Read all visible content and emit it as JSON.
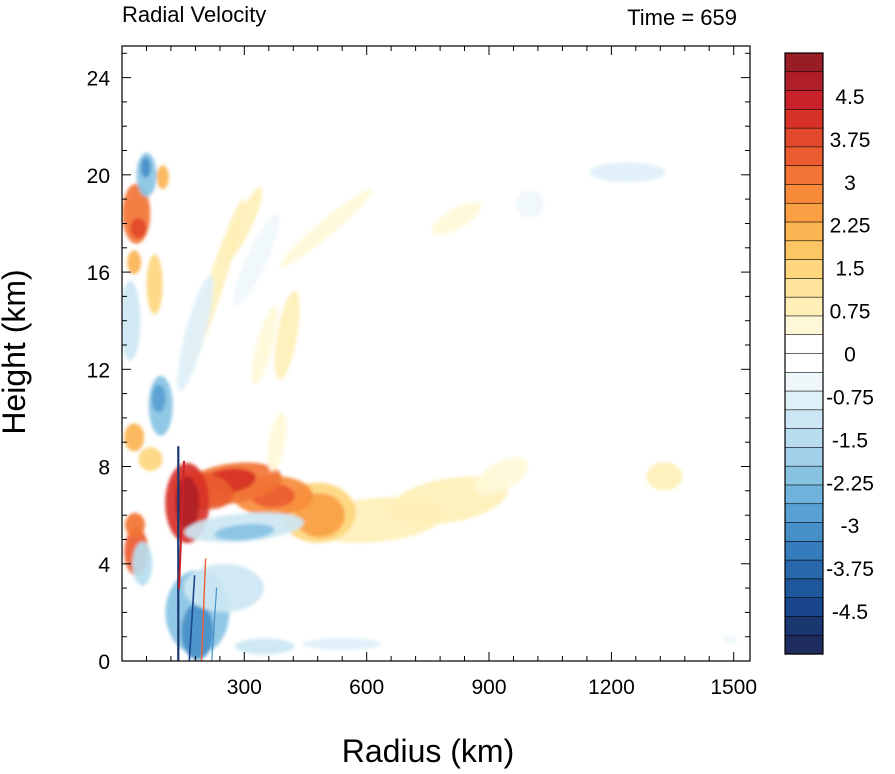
{
  "chart_data": {
    "type": "heatmap",
    "title_left": "Radial Velocity",
    "title_right": "Time = 659",
    "xlabel": "Radius (km)",
    "ylabel": "Height (km)",
    "xlim": [
      0,
      1540
    ],
    "ylim": [
      0,
      25.3
    ],
    "xticks": [
      300,
      600,
      900,
      1200,
      1500
    ],
    "yticks": [
      0,
      4,
      8,
      12,
      16,
      20,
      24
    ],
    "grid": false,
    "colorbar": {
      "min": -5.25,
      "max": 5.25,
      "step": 0.25,
      "tick_labels": [
        "4.5",
        "3.75",
        "3",
        "2.25",
        "1.5",
        "0.75",
        "0",
        "-0.75",
        "-1.5",
        "-2.25",
        "-3",
        "-3.75",
        "-4.5"
      ],
      "tick_values": [
        4.5,
        3.75,
        3,
        2.25,
        1.5,
        0.75,
        0,
        -0.75,
        -1.5,
        -2.25,
        -3,
        -3.75,
        -4.5
      ],
      "colors_top_to_bottom": [
        "#981d25",
        "#b01f27",
        "#c9222a",
        "#d73227",
        "#e2492c",
        "#eb5d30",
        "#f27434",
        "#f78b3a",
        "#f9a044",
        "#fbb452",
        "#fcc665",
        "#fdd67e",
        "#fee39b",
        "#fff0b8",
        "#fff8d8",
        "#ffffff",
        "#ffffff",
        "#eff7fb",
        "#e0f0f8",
        "#cce7f3",
        "#b7ddef",
        "#a1d1ea",
        "#88c3e4",
        "#6fb3dc",
        "#58a1d2",
        "#4590c8",
        "#357cbc",
        "#2968ad",
        "#1f579d",
        "#19468c",
        "#1a3770",
        "#1d2c5c"
      ]
    },
    "features": [
      {
        "desc": "strong outflow max",
        "x": 160,
        "y": 6.5,
        "value": 4.75
      },
      {
        "desc": "outflow",
        "x": 270,
        "y": 7.3,
        "value": 4.25
      },
      {
        "desc": "outflow",
        "x": 370,
        "y": 6.8,
        "value": 3.5
      },
      {
        "desc": "outflow",
        "x": 480,
        "y": 6.1,
        "value": 2.5
      },
      {
        "desc": "outflow",
        "x": 620,
        "y": 5.8,
        "value": 1.25
      },
      {
        "desc": "outflow",
        "x": 800,
        "y": 6.6,
        "value": 1.0
      },
      {
        "desc": "outflow",
        "x": 1330,
        "y": 7.6,
        "value": 0.75
      },
      {
        "desc": "upper outflow",
        "x": 40,
        "y": 18.4,
        "value": 3.75
      },
      {
        "desc": "low-level outflow",
        "x": 30,
        "y": 4.5,
        "value": 3.5
      },
      {
        "desc": "low-level outflow",
        "x": 30,
        "y": 5.6,
        "value": 3.25
      },
      {
        "desc": "outflow",
        "x": 30,
        "y": 9.2,
        "value": 2.0
      },
      {
        "desc": "upper outflow",
        "x": 30,
        "y": 16.4,
        "value": 2.0
      },
      {
        "desc": "inflow max",
        "x": 185,
        "y": 1.2,
        "value": -4.75
      },
      {
        "desc": "inflow",
        "x": 95,
        "y": 10.5,
        "value": -2.5
      },
      {
        "desc": "inflow",
        "x": 60,
        "y": 20.0,
        "value": -2.75
      },
      {
        "desc": "inflow",
        "x": 20,
        "y": 14.0,
        "value": -1.25
      },
      {
        "desc": "inflow",
        "x": 300,
        "y": 5.5,
        "value": -2.0
      },
      {
        "desc": "upper inflow",
        "x": 1240,
        "y": 20.1,
        "value": -0.75
      }
    ]
  }
}
